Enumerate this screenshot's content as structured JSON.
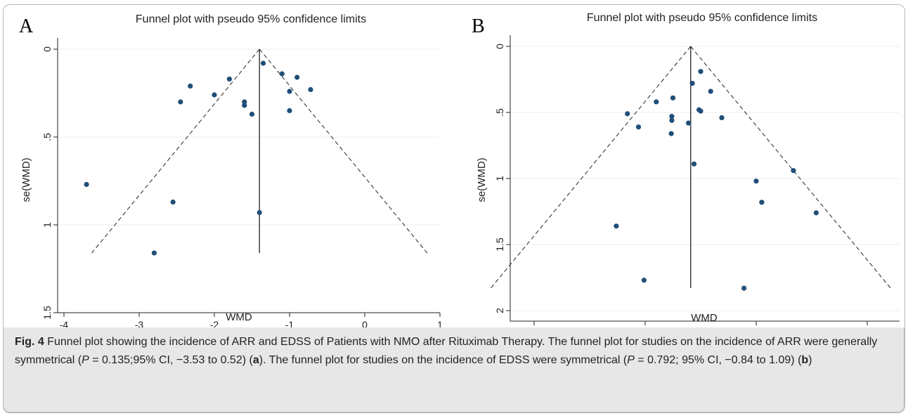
{
  "panels": [
    {
      "letter": "A",
      "title": "Funnel plot with pseudo 95% confidence limits",
      "xlabel": "WMD",
      "ylabel": "se(WMD)"
    },
    {
      "letter": "B",
      "title": "Funnel plot with pseudo 95% confidence limits",
      "xlabel": "WMD",
      "ylabel": "se(WMD)"
    }
  ],
  "caption": {
    "label": "Fig. 4",
    "text_1": " Funnel plot showing the incidence of ARR and EDSS of Patients with NMO after Rituximab Therapy. The funnel plot for studies on the incidence of ARR were generally symmetrical (",
    "p1": "P",
    "text_2": " = 0.135;95% CI, −3.53 to 0.52) (",
    "ref_a": "a",
    "text_3": "). The funnel plot for studies on the incidence of EDSS were symmetrical (",
    "p2": "P",
    "text_4": " = 0.792; 95% CI, −0.84 to 1.09) (",
    "ref_b": "b",
    "text_5": ")"
  },
  "colors": {
    "point": "#1f4e79",
    "line": "#222222",
    "grid": "#ececec"
  },
  "chart_data": [
    {
      "type": "scatter",
      "title": "Funnel plot with pseudo 95% confidence limits",
      "xlabel": "WMD",
      "ylabel": "se(WMD)",
      "xlim": [
        -4.1,
        1.1
      ],
      "ylim": [
        0,
        1.55
      ],
      "y_inverted": true,
      "xticks": [
        "-4",
        "-3",
        "-2",
        "-1",
        "0",
        "1"
      ],
      "yticks": [
        "0",
        ".5",
        "1",
        "1.5"
      ],
      "pooled_estimate": -1.4,
      "funnel": {
        "apex": [
          -1.4,
          0
        ],
        "left_end": [
          -3.63,
          1.16
        ],
        "right_end": [
          0.83,
          1.16
        ]
      },
      "points": [
        {
          "x": -1.35,
          "y": 0.08
        },
        {
          "x": -1.1,
          "y": 0.14
        },
        {
          "x": -0.9,
          "y": 0.16
        },
        {
          "x": -1.8,
          "y": 0.17
        },
        {
          "x": -2.32,
          "y": 0.21
        },
        {
          "x": -0.72,
          "y": 0.23
        },
        {
          "x": -1.0,
          "y": 0.24
        },
        {
          "x": -2.0,
          "y": 0.26
        },
        {
          "x": -2.45,
          "y": 0.3
        },
        {
          "x": -1.6,
          "y": 0.3
        },
        {
          "x": -1.6,
          "y": 0.32
        },
        {
          "x": -1.0,
          "y": 0.35
        },
        {
          "x": -1.5,
          "y": 0.37
        },
        {
          "x": -3.7,
          "y": 0.77
        },
        {
          "x": -2.55,
          "y": 0.87
        },
        {
          "x": -1.4,
          "y": 0.93
        },
        {
          "x": -2.8,
          "y": 1.16
        }
      ]
    },
    {
      "type": "scatter",
      "title": "Funnel plot with pseudo 95% confidence limits",
      "xlabel": "WMD",
      "ylabel": "se(WMD)",
      "xlim": [
        -4.8,
        2.5
      ],
      "ylim": [
        0,
        2.0
      ],
      "y_inverted": true,
      "xticks": [
        "-4",
        "-2",
        "0",
        "2"
      ],
      "yticks": [
        "0",
        ".5",
        "1",
        "1.5",
        "2"
      ],
      "pooled_estimate": -1.18,
      "funnel": {
        "apex": [
          -1.18,
          0
        ],
        "left_end": [
          -4.78,
          1.83
        ],
        "right_end": [
          2.42,
          1.83
        ]
      },
      "points": [
        {
          "x": -1.0,
          "y": 0.19
        },
        {
          "x": -1.15,
          "y": 0.28
        },
        {
          "x": -0.82,
          "y": 0.34
        },
        {
          "x": -1.5,
          "y": 0.39
        },
        {
          "x": -1.8,
          "y": 0.42
        },
        {
          "x": -1.03,
          "y": 0.48
        },
        {
          "x": -1.0,
          "y": 0.49
        },
        {
          "x": -2.32,
          "y": 0.51
        },
        {
          "x": -1.52,
          "y": 0.53
        },
        {
          "x": -0.62,
          "y": 0.54
        },
        {
          "x": -1.52,
          "y": 0.56
        },
        {
          "x": -1.22,
          "y": 0.58
        },
        {
          "x": -2.12,
          "y": 0.61
        },
        {
          "x": -1.53,
          "y": 0.66
        },
        {
          "x": -1.12,
          "y": 0.89
        },
        {
          "x": 0.67,
          "y": 0.94
        },
        {
          "x": 0.0,
          "y": 1.02
        },
        {
          "x": 0.1,
          "y": 1.18
        },
        {
          "x": 1.08,
          "y": 1.26
        },
        {
          "x": -2.52,
          "y": 1.36
        },
        {
          "x": -2.02,
          "y": 1.77
        },
        {
          "x": -0.22,
          "y": 1.83
        }
      ]
    }
  ]
}
